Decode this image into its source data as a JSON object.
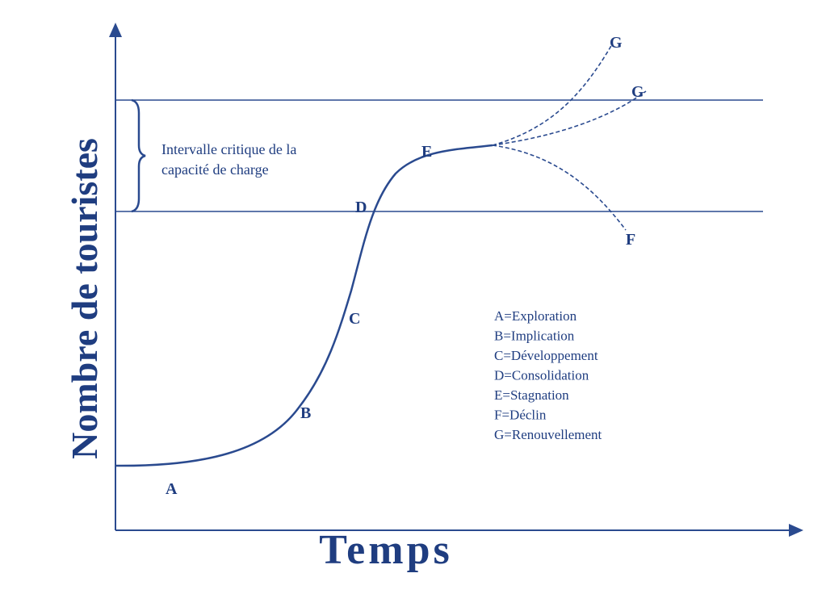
{
  "diagram": {
    "y_axis_label": "Nombre de touristes",
    "x_axis_label": "Temps",
    "bracket_label": [
      "Intervalle critique de la",
      "capacité de charge"
    ],
    "stages": [
      {
        "label": "A"
      },
      {
        "label": "B"
      },
      {
        "label": "C"
      },
      {
        "label": "D"
      },
      {
        "label": "E"
      },
      {
        "label": "G"
      },
      {
        "label": "G"
      },
      {
        "label": "F"
      }
    ],
    "legend": [
      "A=Exploration",
      "B=Implication",
      "C=Développement",
      "D=Consolidation",
      "E=Stagnation",
      "F=Déclin",
      "G=Renouvellement"
    ]
  }
}
